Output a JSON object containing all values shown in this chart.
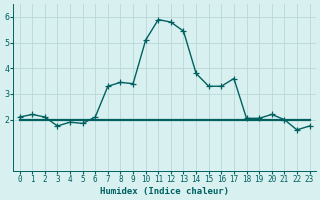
{
  "xlabel": "Humidex (Indice chaleur)",
  "x_values": [
    0,
    1,
    2,
    3,
    4,
    5,
    6,
    7,
    8,
    9,
    10,
    11,
    12,
    13,
    14,
    15,
    16,
    17,
    18,
    19,
    20,
    21,
    22,
    23
  ],
  "y_main": [
    2.1,
    2.2,
    2.1,
    1.75,
    1.9,
    1.85,
    2.1,
    3.3,
    3.45,
    3.4,
    5.1,
    5.9,
    5.8,
    5.45,
    3.8,
    3.3,
    3.3,
    3.6,
    2.05,
    2.05,
    2.2,
    2.0,
    1.6,
    1.75
  ],
  "y_line": [
    2.0,
    2.0,
    2.0,
    2.0,
    2.0,
    2.0,
    2.0,
    2.0,
    2.0,
    2.0,
    2.0,
    2.0,
    2.0,
    2.0,
    2.0,
    2.0,
    2.0,
    2.0,
    2.0,
    2.0,
    2.0,
    2.0,
    2.0,
    2.0
  ],
  "line_color": "#006060",
  "bg_color": "#d8f0f0",
  "grid_color": "#b8d8d8",
  "ylim": [
    0,
    6.5
  ],
  "xlim": [
    -0.5,
    23.5
  ],
  "yticks": [
    2,
    3,
    4,
    5,
    6
  ],
  "xticks": [
    0,
    1,
    2,
    3,
    4,
    5,
    6,
    7,
    8,
    9,
    10,
    11,
    12,
    13,
    14,
    15,
    16,
    17,
    18,
    19,
    20,
    21,
    22,
    23
  ],
  "xlabel_fontsize": 6.5,
  "tick_fontsize": 5.5,
  "marker": "+",
  "markersize": 4,
  "linewidth": 1.0,
  "flat_linewidth": 1.6,
  "markeredgewidth": 0.9
}
